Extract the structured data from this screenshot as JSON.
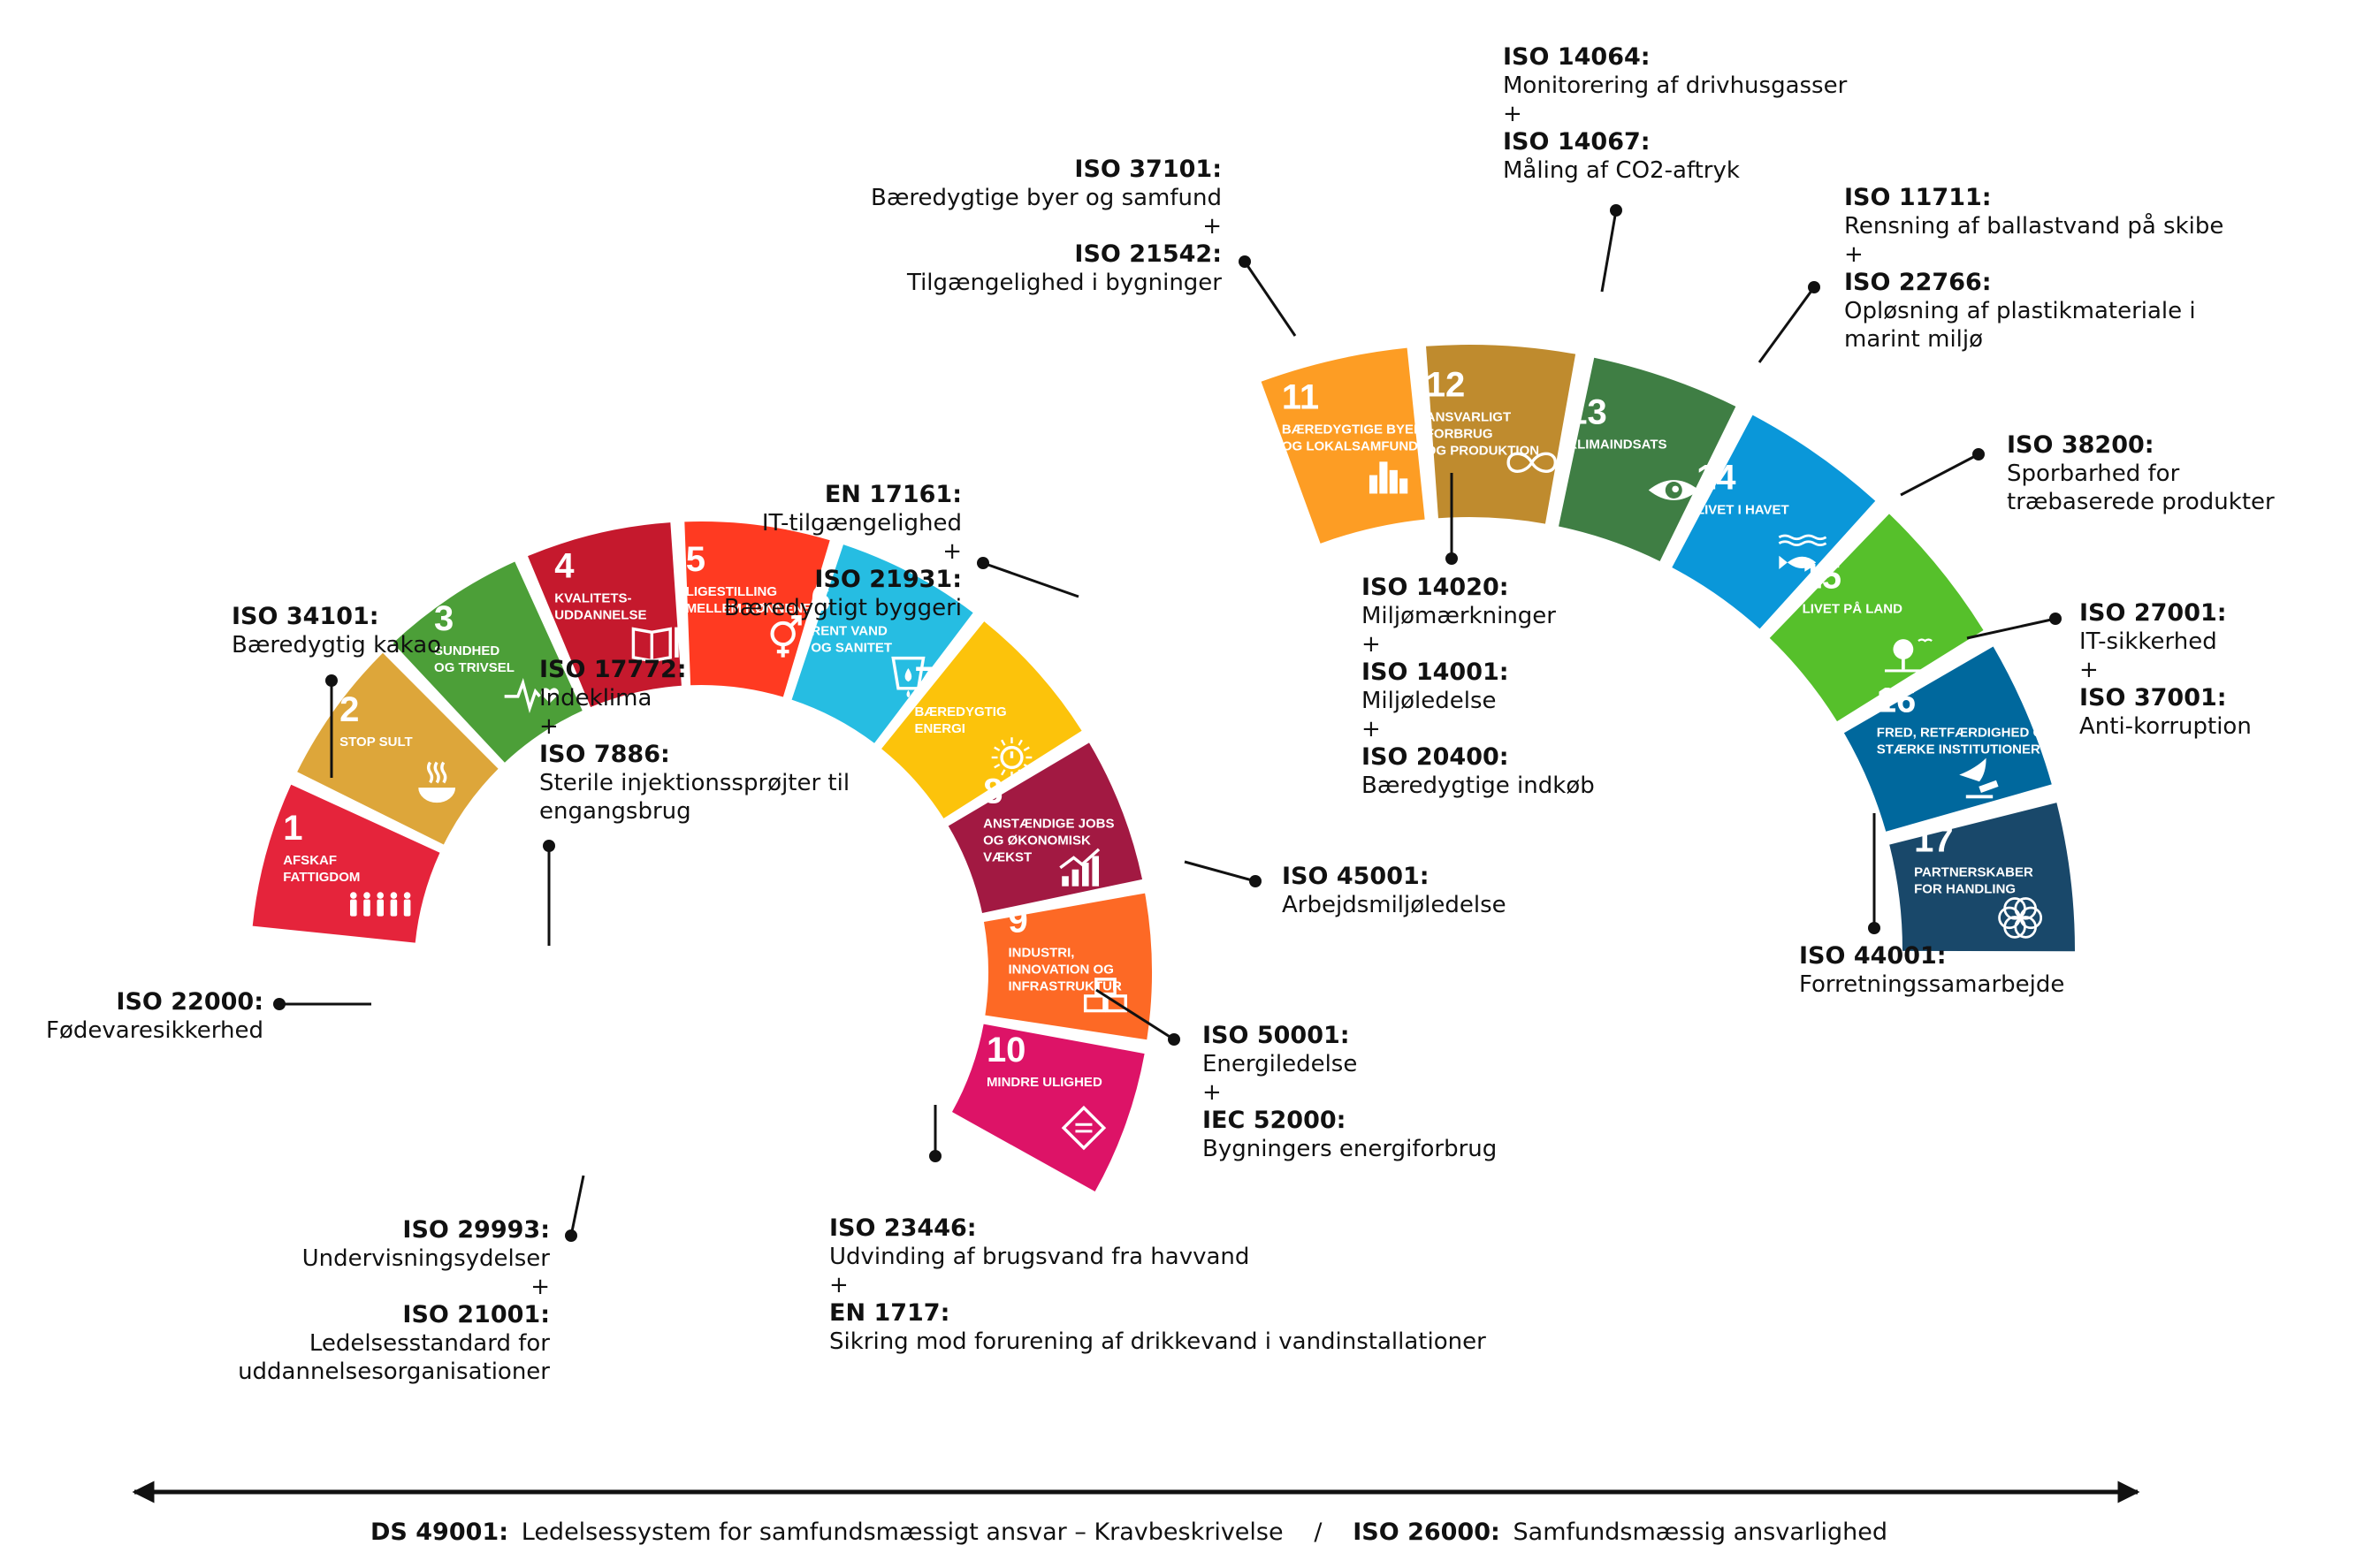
{
  "goals": [
    {
      "num": "1",
      "lines": [
        "AFSKAF",
        "FATTIGDOM"
      ],
      "color": "#e5243b",
      "icon": "family-icon"
    },
    {
      "num": "2",
      "lines": [
        "STOP SULT"
      ],
      "color": "#dda63a",
      "icon": "bowl-icon"
    },
    {
      "num": "3",
      "lines": [
        "SUNDHED",
        "OG TRIVSEL"
      ],
      "color": "#4c9f38",
      "icon": "heartbeat-icon"
    },
    {
      "num": "4",
      "lines": [
        "KVALITETS-",
        "UDDANNELSE"
      ],
      "color": "#c5192d",
      "icon": "book-icon"
    },
    {
      "num": "5",
      "lines": [
        "LIGESTILLING",
        "MELLEM KØNNENE"
      ],
      "color": "#ff3a21",
      "icon": "gender-equality-icon"
    },
    {
      "num": "6",
      "lines": [
        "RENT VAND",
        "OG SANITET"
      ],
      "color": "#26bde2",
      "icon": "water-drop-icon"
    },
    {
      "num": "7",
      "lines": [
        "BÆREDYGTIG",
        "ENERGI"
      ],
      "color": "#fcc30b",
      "icon": "sun-power-icon"
    },
    {
      "num": "8",
      "lines": [
        "ANSTÆNDIGE JOBS",
        "OG ØKONOMISK",
        "VÆKST"
      ],
      "color": "#a21942",
      "icon": "growth-chart-icon"
    },
    {
      "num": "9",
      "lines": [
        "INDUSTRI,",
        "INNOVATION OG",
        "INFRASTRUKTUR"
      ],
      "color": "#fd6925",
      "icon": "cubes-icon"
    },
    {
      "num": "10",
      "lines": [
        "MINDRE ULIGHED"
      ],
      "color": "#dd1367",
      "icon": "equality-arrows-icon"
    },
    {
      "num": "11",
      "lines": [
        "BÆREDYGTIGE BYER",
        "OG LOKALSAMFUND"
      ],
      "color": "#fd9d24",
      "icon": "city-icon"
    },
    {
      "num": "12",
      "lines": [
        "ANSVARLIGT",
        "FORBRUG",
        "OG PRODUKTION"
      ],
      "color": "#bf8b2e",
      "icon": "infinity-icon"
    },
    {
      "num": "13",
      "lines": [
        "KLIMAINDSATS"
      ],
      "color": "#3f7e44",
      "icon": "eye-globe-icon"
    },
    {
      "num": "14",
      "lines": [
        "LIVET I HAVET"
      ],
      "color": "#0a97d9",
      "icon": "fish-icon"
    },
    {
      "num": "15",
      "lines": [
        "LIVET PÅ LAND"
      ],
      "color": "#56c02b",
      "icon": "tree-icon"
    },
    {
      "num": "16",
      "lines": [
        "FRED, RETFÆRDIGHED OG",
        "STÆRKE INSTITUTIONER"
      ],
      "color": "#00689d",
      "icon": "dove-gavel-icon"
    },
    {
      "num": "17",
      "lines": [
        "PARTNERSKABER",
        "FOR HANDLING"
      ],
      "color": "#19486a",
      "icon": "rings-icon"
    }
  ],
  "standards": [
    {
      "id": "g1",
      "items": [
        {
          "code": "ISO 34101:",
          "desc": [
            "Bæredygtig kakao"
          ]
        }
      ]
    },
    {
      "id": "g2",
      "items": [
        {
          "code": "ISO 22000:",
          "desc": [
            "Fødevaresikkerhed"
          ]
        }
      ]
    },
    {
      "id": "g3",
      "items": [
        {
          "code": "ISO 17772:",
          "desc": [
            "Indeklima"
          ]
        },
        {
          "code": "ISO 7886:",
          "desc": [
            "Sterile injektionssprøjter til",
            "engangsbrug"
          ]
        }
      ]
    },
    {
      "id": "g4",
      "items": [
        {
          "code": "ISO 29993:",
          "desc": [
            "Undervisningsydelser"
          ]
        },
        {
          "code": "ISO 21001:",
          "desc": [
            "Ledelsesstandard for",
            "uddannelsesorganisationer"
          ]
        }
      ]
    },
    {
      "id": "g6",
      "items": [
        {
          "code": "ISO 23446:",
          "desc": [
            "Udvinding af brugsvand fra havvand"
          ]
        },
        {
          "code": "EN 1717:",
          "desc": [
            "Sikring mod forurening af drikkevand i vandinstallationer"
          ]
        }
      ]
    },
    {
      "id": "g7",
      "items": [
        {
          "code": "ISO 50001:",
          "desc": [
            "Energiledelse"
          ]
        },
        {
          "code": "IEC 52000:",
          "desc": [
            "Bygningers energiforbrug"
          ]
        }
      ]
    },
    {
      "id": "g8",
      "items": [
        {
          "code": "ISO 45001:",
          "desc": [
            "Arbejdsmiljøledelse"
          ]
        }
      ]
    },
    {
      "id": "g9",
      "items": [
        {
          "code": "EN 17161:",
          "desc": [
            "IT-tilgængelighed"
          ]
        },
        {
          "code": "ISO 21931:",
          "desc": [
            "Bæredygtigt byggeri"
          ]
        }
      ]
    },
    {
      "id": "g11",
      "items": [
        {
          "code": "ISO 37101:",
          "desc": [
            "Bæredygtige byer og samfund"
          ]
        },
        {
          "code": "ISO 21542:",
          "desc": [
            "Tilgængelighed i bygninger"
          ]
        }
      ]
    },
    {
      "id": "g12",
      "items": [
        {
          "code": "ISO 14020:",
          "desc": [
            "Miljømærkninger"
          ]
        },
        {
          "code": "ISO 14001:",
          "desc": [
            "Miljøledelse"
          ]
        },
        {
          "code": "ISO 20400:",
          "desc": [
            "Bæredygtige indkøb"
          ]
        }
      ]
    },
    {
      "id": "g13",
      "items": [
        {
          "code": "ISO 14064:",
          "desc": [
            "Monitorering af drivhusgasser"
          ]
        },
        {
          "code": "ISO 14067:",
          "desc": [
            "Måling af CO2-aftryk"
          ]
        }
      ]
    },
    {
      "id": "g14",
      "items": [
        {
          "code": "ISO 11711:",
          "desc": [
            "Rensning af ballastvand på skibe"
          ]
        },
        {
          "code": "ISO 22766:",
          "desc": [
            "Opløsning af plastikmateriale i",
            "marint miljø"
          ]
        }
      ]
    },
    {
      "id": "g15",
      "items": [
        {
          "code": "ISO 38200:",
          "desc": [
            "Sporbarhed for",
            "træbaserede produkter"
          ]
        }
      ]
    },
    {
      "id": "g16",
      "items": [
        {
          "code": "ISO 27001:",
          "desc": [
            "IT-sikkerhed"
          ]
        },
        {
          "code": "ISO 37001:",
          "desc": [
            "Anti-korruption"
          ]
        }
      ]
    },
    {
      "id": "g17",
      "items": [
        {
          "code": "ISO 44001:",
          "desc": [
            "Forretningssamarbejde"
          ]
        }
      ]
    }
  ],
  "plus_sign": "+",
  "bottom": {
    "code1": "DS 49001:",
    "desc1": "Ledelsessystem for samfundsmæssigt ansvar – Kravbeskrivelse",
    "separator": "/",
    "code2": "ISO 26000:",
    "desc2": "Samfundsmæssig ansvarlighed"
  }
}
